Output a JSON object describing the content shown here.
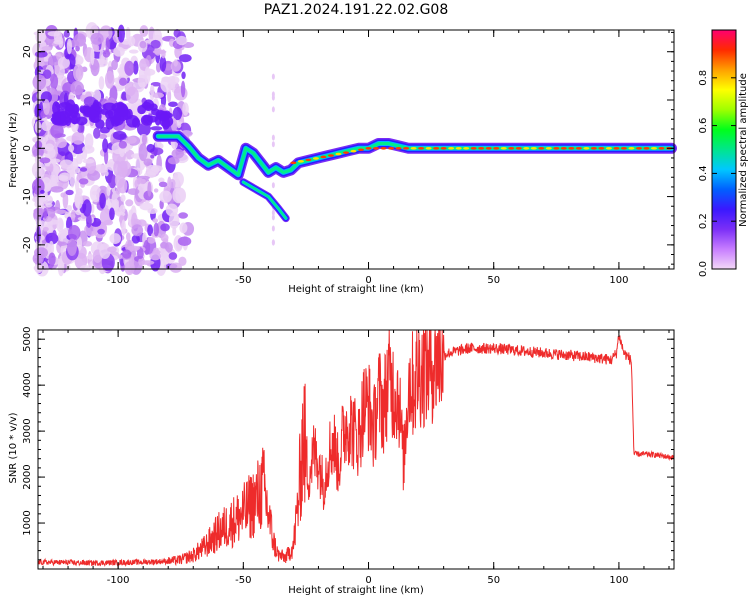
{
  "title": "PAZ1.2024.191.22.02.G08",
  "chart_data": [
    {
      "type": "heatmap",
      "xlabel": "Height of straight line (km)",
      "ylabel": "Frequency (Hz)",
      "xlim": [
        -132,
        122
      ],
      "ylim": [
        -25,
        24.5
      ],
      "xticks": [
        -100,
        -50,
        0,
        50,
        100
      ],
      "yticks": [
        -20,
        -10,
        0,
        10,
        20
      ],
      "ridge": [
        [
          -84,
          2.5
        ],
        [
          -80,
          2.5
        ],
        [
          -76,
          2.5
        ],
        [
          -72,
          0.5
        ],
        [
          -68,
          -2
        ],
        [
          -64,
          -3.5
        ],
        [
          -60,
          -2.5
        ],
        [
          -56,
          -4
        ],
        [
          -52,
          -5.5
        ],
        [
          -49,
          0
        ],
        [
          -46,
          -1
        ],
        [
          -43,
          -3
        ],
        [
          -40,
          -5
        ],
        [
          -37,
          -4
        ],
        [
          -34,
          -5
        ],
        [
          -31,
          -4.5
        ],
        [
          -28,
          -3
        ],
        [
          -24,
          -2.5
        ],
        [
          -20,
          -2
        ],
        [
          -16,
          -1.5
        ],
        [
          -12,
          -1
        ],
        [
          -8,
          -0.5
        ],
        [
          -4,
          0
        ],
        [
          0,
          0
        ],
        [
          4,
          1
        ],
        [
          8,
          1
        ],
        [
          12,
          0.5
        ],
        [
          16,
          0
        ],
        [
          20,
          0
        ],
        [
          30,
          0
        ],
        [
          40,
          0
        ],
        [
          50,
          0
        ],
        [
          60,
          0
        ],
        [
          70,
          0
        ],
        [
          80,
          0
        ],
        [
          90,
          0
        ],
        [
          100,
          0
        ],
        [
          110,
          0
        ],
        [
          121,
          0
        ]
      ],
      "branch": [
        [
          -50,
          -7
        ],
        [
          -45,
          -8.5
        ],
        [
          -40,
          -10
        ],
        [
          -36,
          -12.5
        ],
        [
          -33,
          -14.5
        ]
      ],
      "colorbar": {
        "label": "Normalized spectral amplitude",
        "range": [
          0,
          1
        ],
        "ticks": [
          0.0,
          0.2,
          0.4,
          0.6,
          0.8
        ],
        "colors": [
          "#f4d8f8",
          "#c77dff",
          "#7b2ff7",
          "#3a18ff",
          "#0060ff",
          "#00c8ff",
          "#00e68c",
          "#00ff1a",
          "#a0ff00",
          "#ffff00",
          "#ffa000",
          "#ff2a00",
          "#ff0070"
        ]
      }
    },
    {
      "type": "line",
      "xlabel": "Height of straight line (km)",
      "ylabel": "SNR (10 * v/v)",
      "xlim": [
        -132,
        122
      ],
      "ylim": [
        0,
        5200
      ],
      "xticks": [
        -100,
        -50,
        0,
        50,
        100
      ],
      "yticks": [
        1000,
        2000,
        3000,
        4000,
        5000
      ],
      "color": "#ee2b2b",
      "x": [
        -132,
        -120,
        -110,
        -100,
        -90,
        -80,
        -75,
        -70,
        -65,
        -60,
        -55,
        -50,
        -45,
        -42,
        -40,
        -38,
        -36,
        -33,
        -30,
        -28,
        -26,
        -24,
        -22,
        -20,
        -18,
        -16,
        -14,
        -12,
        -10,
        -8,
        -6,
        -4,
        -2,
        0,
        2,
        4,
        6,
        8,
        10,
        12,
        14,
        16,
        18,
        20,
        24,
        28,
        32,
        36,
        40,
        50,
        60,
        70,
        80,
        90,
        97,
        99,
        100,
        102,
        104,
        105,
        105.5,
        106,
        110,
        115,
        122
      ],
      "y": [
        150,
        140,
        130,
        140,
        150,
        170,
        200,
        300,
        500,
        800,
        1000,
        1200,
        1500,
        1800,
        1200,
        600,
        300,
        250,
        500,
        1500,
        3000,
        2000,
        2500,
        2400,
        1800,
        2500,
        2800,
        2200,
        3000,
        3200,
        3000,
        2800,
        3500,
        3600,
        3000,
        3800,
        3500,
        4200,
        3900,
        3800,
        2300,
        4100,
        4000,
        4300,
        4400,
        4600,
        4700,
        4750,
        4800,
        4800,
        4750,
        4700,
        4650,
        4600,
        4550,
        4700,
        5100,
        4700,
        4600,
        4500,
        3500,
        2500,
        2500,
        2480,
        2420
      ]
    }
  ]
}
